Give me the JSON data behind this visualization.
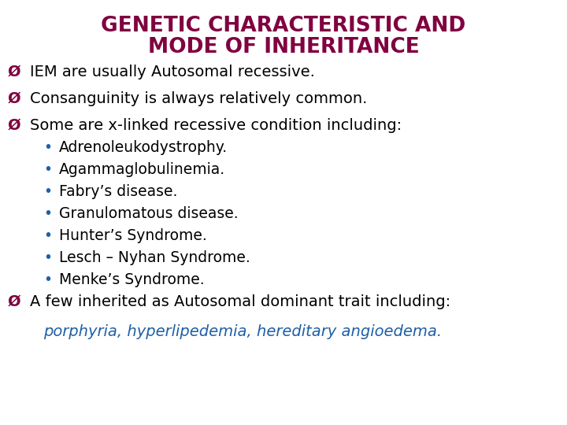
{
  "title_line1": "GENETIC CHARACTERISTIC AND",
  "title_line2": "MODE OF INHERITANCE",
  "title_color": "#800040",
  "background_color": "#FFFFFF",
  "bullet_sym_color": "#800040",
  "body_text_color": "#000000",
  "sub_bullet_dot_color": "#1F5FA6",
  "sub_text_color": "#000000",
  "last_line_color": "#1F5FA6",
  "main_bullets": [
    "IEM are usually Autosomal recessive.",
    "Consanguinity is always relatively common.",
    "Some are x-linked recessive condition including:"
  ],
  "sub_bullets": [
    "Adrenoleukodystrophy.",
    "Agammaglobulinemia.",
    "Fabry’s disease.",
    "Granulomatous disease.",
    "Hunter’s Syndrome.",
    "Lesch – Nyhan Syndrome.",
    "Menke’s Syndrome."
  ],
  "last_bullet": "A few inherited as Autosomal dominant trait including:",
  "last_line": "porphyria, hyperlipedemia, hereditary angioedema.",
  "title_fontsize": 19,
  "body_fontsize": 14,
  "sub_fontsize": 13.5,
  "last_line_fontsize": 14
}
